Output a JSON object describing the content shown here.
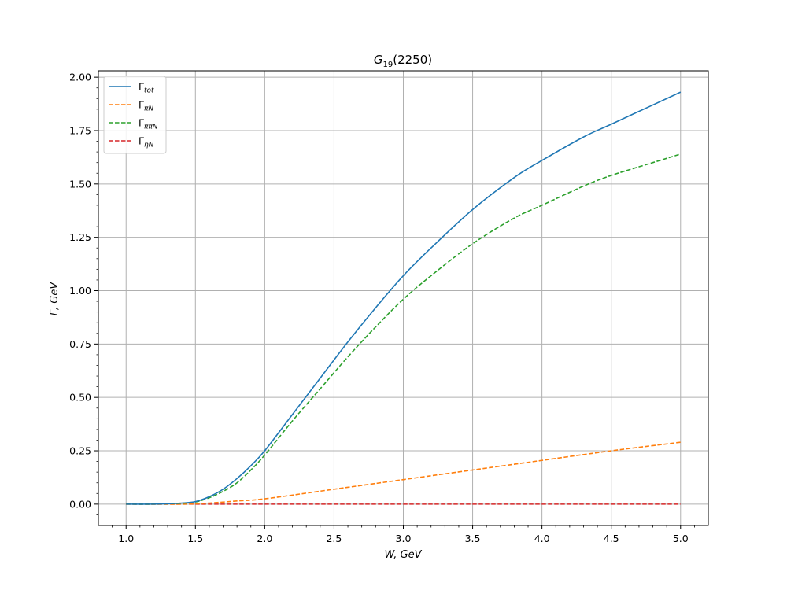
{
  "chart_data": {
    "type": "line",
    "title_main": "G",
    "title_sub": "19",
    "title_rest": "(2250)",
    "xlabel": "W, GeV",
    "ylabel": "Γ, GeV",
    "xlim": [
      0.8,
      5.2
    ],
    "ylim": [
      -0.1,
      2.03
    ],
    "xticks": [
      1.0,
      1.5,
      2.0,
      2.5,
      3.0,
      3.5,
      4.0,
      4.5,
      5.0
    ],
    "xtick_labels": [
      "1.0",
      "1.5",
      "2.0",
      "2.5",
      "3.0",
      "3.5",
      "4.0",
      "4.5",
      "5.0"
    ],
    "yticks": [
      0.0,
      0.25,
      0.5,
      0.75,
      1.0,
      1.25,
      1.5,
      1.75,
      2.0
    ],
    "ytick_labels": [
      "0.00",
      "0.25",
      "0.50",
      "0.75",
      "1.00",
      "1.25",
      "1.50",
      "1.75",
      "2.00"
    ],
    "grid": true,
    "legend_position": "top-left",
    "series": [
      {
        "name_main": "Γ",
        "name_sub": "tot",
        "color": "#1f77b4",
        "dash": "solid",
        "x": [
          1.0,
          1.2,
          1.3,
          1.4,
          1.5,
          1.6,
          1.7,
          1.8,
          1.9,
          2.0,
          2.2,
          2.4,
          2.6,
          2.8,
          3.0,
          3.2,
          3.5,
          3.8,
          4.0,
          4.3,
          4.5,
          4.8,
          5.0
        ],
        "y": [
          0.0,
          0.0,
          0.002,
          0.005,
          0.012,
          0.035,
          0.07,
          0.12,
          0.18,
          0.25,
          0.42,
          0.59,
          0.76,
          0.92,
          1.07,
          1.2,
          1.38,
          1.53,
          1.61,
          1.72,
          1.78,
          1.87,
          1.93
        ]
      },
      {
        "name_main": "Γ",
        "name_sub": "πN",
        "color": "#ff7f0e",
        "dash": "dashed",
        "x": [
          1.0,
          1.4,
          1.6,
          1.8,
          2.0,
          2.5,
          3.0,
          3.5,
          4.0,
          4.5,
          5.0
        ],
        "y": [
          0.0,
          0.0,
          0.005,
          0.015,
          0.025,
          0.07,
          0.115,
          0.16,
          0.205,
          0.25,
          0.29
        ]
      },
      {
        "name_main": "Γ",
        "name_sub": "ππN",
        "color": "#2ca02c",
        "dash": "dashed",
        "x": [
          1.0,
          1.2,
          1.3,
          1.4,
          1.5,
          1.6,
          1.7,
          1.8,
          1.9,
          2.0,
          2.2,
          2.4,
          2.6,
          2.8,
          3.0,
          3.2,
          3.5,
          3.8,
          4.0,
          4.3,
          4.5,
          4.8,
          5.0
        ],
        "y": [
          0.0,
          0.0,
          0.002,
          0.004,
          0.01,
          0.03,
          0.06,
          0.1,
          0.16,
          0.23,
          0.39,
          0.54,
          0.69,
          0.83,
          0.96,
          1.07,
          1.22,
          1.34,
          1.4,
          1.49,
          1.54,
          1.6,
          1.64
        ]
      },
      {
        "name_main": "Γ",
        "name_sub": "ηN",
        "color": "#d62728",
        "dash": "dashed",
        "x": [
          1.0,
          5.0
        ],
        "y": [
          0.0,
          0.0
        ]
      }
    ]
  }
}
